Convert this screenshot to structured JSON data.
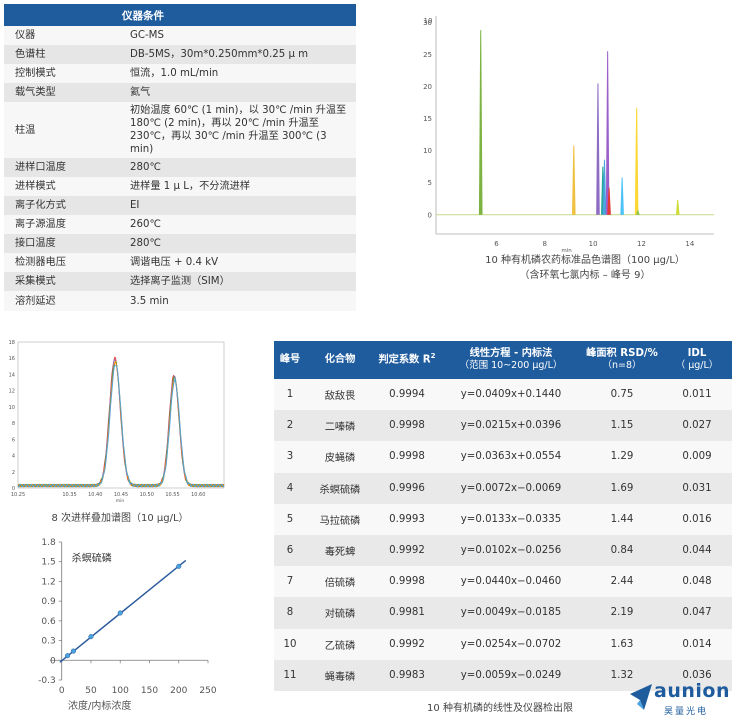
{
  "instrument": {
    "header": "仪器条件",
    "rows": [
      {
        "k": "仪器",
        "v": "GC-MS"
      },
      {
        "k": "色谱柱",
        "v": "DB-5MS，30m*0.250mm*0.25 μ m"
      },
      {
        "k": "控制模式",
        "v": "恒流，1.0 mL/min"
      },
      {
        "k": "载气类型",
        "v": "氦气"
      },
      {
        "k": "柱温",
        "v": "初始温度 60℃ (1 min)，以 30℃ /min 升温至 180℃ (2 min)，再以 20℃ /min 升温至 230℃，再以 30℃ /min 升温至 300℃ (3 min)"
      },
      {
        "k": "进样口温度",
        "v": "280℃"
      },
      {
        "k": "进样模式",
        "v": "进样量 1 μ L，不分流进样"
      },
      {
        "k": "离子化方式",
        "v": "EI"
      },
      {
        "k": "离子源温度",
        "v": "260℃"
      },
      {
        "k": "接口温度",
        "v": "280℃"
      },
      {
        "k": "检测器电压",
        "v": "调谐电压 + 0.4 kV"
      },
      {
        "k": "采集模式",
        "v": "选择离子监测（SIM）"
      },
      {
        "k": "溶剂延迟",
        "v": "3.5 min"
      }
    ]
  },
  "compounds": {
    "headers": {
      "peak": "峰号",
      "name": "化合物",
      "r2": "判定系数 R",
      "eq": "线性方程 - 内标法",
      "eq_sub": "（范围 10~200 μg/L）",
      "rsd": "峰面积 RSD/%",
      "rsd_sub": "（n=8）",
      "idl": "IDL",
      "idl_sub": "（ μg/L）"
    },
    "rows": [
      {
        "peak": "1",
        "name": "敌敌畏",
        "r2": "0.9994",
        "eq": "y=0.0409x+0.1440",
        "rsd": "0.75",
        "idl": "0.011"
      },
      {
        "peak": "2",
        "name": "二嗪磷",
        "r2": "0.9998",
        "eq": "y=0.0215x+0.0396",
        "rsd": "1.15",
        "idl": "0.027"
      },
      {
        "peak": "3",
        "name": "皮蝇磷",
        "r2": "0.9998",
        "eq": "y=0.0363x+0.0554",
        "rsd": "1.29",
        "idl": "0.009"
      },
      {
        "peak": "4",
        "name": "杀螟硫磷",
        "r2": "0.9996",
        "eq": "y=0.0072x−0.0069",
        "rsd": "1.69",
        "idl": "0.031"
      },
      {
        "peak": "5",
        "name": "马拉硫磷",
        "r2": "0.9993",
        "eq": "y=0.0133x−0.0335",
        "rsd": "1.44",
        "idl": "0.016"
      },
      {
        "peak": "6",
        "name": "毒死蜱",
        "r2": "0.9992",
        "eq": "y=0.0102x−0.0256",
        "rsd": "0.84",
        "idl": "0.044"
      },
      {
        "peak": "7",
        "name": "倍硫磷",
        "r2": "0.9998",
        "eq": "y=0.0440x−0.0460",
        "rsd": "2.44",
        "idl": "0.048"
      },
      {
        "peak": "8",
        "name": "对硫磷",
        "r2": "0.9981",
        "eq": "y=0.0049x−0.0185",
        "rsd": "2.19",
        "idl": "0.047"
      },
      {
        "peak": "10",
        "name": "乙硫磷",
        "r2": "0.9992",
        "eq": "y=0.0254x−0.0702",
        "rsd": "1.63",
        "idl": "0.014"
      },
      {
        "peak": "11",
        "name": "蝇毒磷",
        "r2": "0.9983",
        "eq": "y=0.0059x−0.0249",
        "rsd": "1.32",
        "idl": "0.036"
      }
    ],
    "caption": "10 种有机磷的线性及仪器检出限"
  },
  "captions": {
    "chrom1_line1": "10 种有机磷农药标准品色谱图（100 μg/L）",
    "chrom1_line2": "（含环氧七氯内标 – 峰号 9）",
    "chrom2": "8 次进样叠加谱图（10 μg/L）"
  },
  "logo": {
    "text": "aunion",
    "sub": "昊量光电",
    "color": "#1f5c9e"
  },
  "chart_data": [
    {
      "type": "line",
      "xlim": [
        3.5,
        15
      ],
      "ylim": [
        -3,
        31
      ],
      "xticks": [
        6,
        8,
        10,
        12,
        14
      ],
      "yticks": [
        0,
        5,
        10,
        15,
        20,
        25,
        30
      ],
      "top_label": "10",
      "xunit": "min",
      "baseline": 0,
      "peaks": [
        {
          "x": 5.35,
          "h": 28.8,
          "color": "#7cb342"
        },
        {
          "x": 9.2,
          "h": 10.8,
          "color": "#f0c040"
        },
        {
          "x": 10.2,
          "h": 20.5,
          "color": "#8e6cc4"
        },
        {
          "x": 10.4,
          "h": 7.5,
          "color": "#26a69a"
        },
        {
          "x": 10.47,
          "h": 8.6,
          "color": "#4aa3df"
        },
        {
          "x": 10.6,
          "h": 25.5,
          "color": "#9c5fc9"
        },
        {
          "x": 10.66,
          "h": 4.2,
          "color": "#e53935"
        },
        {
          "x": 11.2,
          "h": 5.8,
          "color": "#4fc3f7"
        },
        {
          "x": 11.8,
          "h": 16.7,
          "color": "#fdd835"
        },
        {
          "x": 11.85,
          "h": 0.6,
          "color": "#8bc34a"
        },
        {
          "x": 13.5,
          "h": 2.3,
          "color": "#cddc39"
        }
      ]
    },
    {
      "type": "line",
      "xlim": [
        10.25,
        10.65
      ],
      "ylim": [
        0,
        18
      ],
      "xticks": [
        10.25,
        10.35,
        10.4,
        10.45,
        10.5,
        10.55,
        10.6
      ],
      "xtick_labels": [
        "10.25",
        "10.35",
        "10.40",
        "10.45",
        "10.50",
        "10.55",
        "10.60"
      ],
      "yticks": [
        0,
        2,
        4,
        6,
        8,
        10,
        12,
        14,
        16,
        18
      ],
      "xunit": "min",
      "series_colors": [
        "#e53935",
        "#8e6cc4",
        "#43a047",
        "#fb8c00",
        "#4aa3df"
      ],
      "peaks": [
        {
          "x": 10.438,
          "h": 15.7,
          "w": 0.0105
        },
        {
          "x": 10.553,
          "h": 13.6,
          "w": 0.0095
        }
      ]
    },
    {
      "type": "scatter",
      "title": "杀螟硫磷",
      "xlabel": "浓度/内标浓度",
      "xlim": [
        -20,
        250
      ],
      "ylim": [
        -0.3,
        1.8
      ],
      "xticks": [
        0,
        50,
        100,
        150,
        200,
        250
      ],
      "yticks": [
        -0.3,
        0,
        0.3,
        0.6,
        0.9,
        1.2,
        1.5,
        1.8
      ],
      "ytick_labels": [
        "-0.3",
        "0",
        "0.3",
        "0.6",
        "0.9",
        "1.2",
        "1.5",
        "1.8"
      ],
      "points": [
        {
          "x": 10,
          "y": 0.07
        },
        {
          "x": 20,
          "y": 0.14
        },
        {
          "x": 50,
          "y": 0.36
        },
        {
          "x": 100,
          "y": 0.72
        },
        {
          "x": 200,
          "y": 1.43
        }
      ],
      "fit": {
        "slope": 0.0072,
        "intercept": -0.0069
      },
      "point_color": "#4aa3df",
      "line_color": "#2b5c9e"
    }
  ]
}
